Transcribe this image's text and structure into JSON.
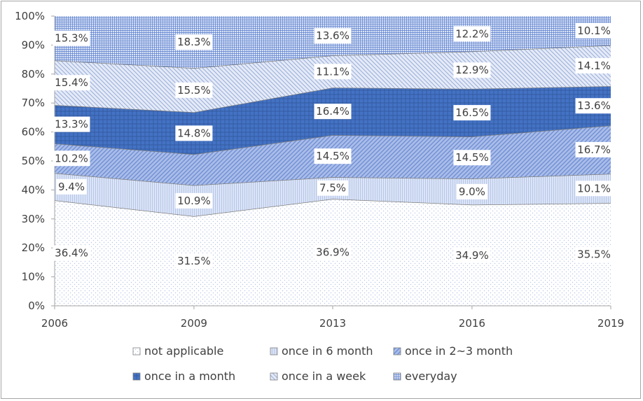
{
  "chart_data": {
    "type": "area",
    "stacked": "percent",
    "x": [
      "2006",
      "2009",
      "2013",
      "2016",
      "2019"
    ],
    "y_ticks": [
      "0%",
      "10%",
      "20%",
      "30%",
      "40%",
      "50%",
      "60%",
      "70%",
      "80%",
      "90%",
      "100%"
    ],
    "ylim": [
      0,
      100
    ],
    "grid": false,
    "legend_position": "bottom",
    "series": [
      {
        "name": "not applicable",
        "values": [
          36.4,
          31.5,
          36.9,
          34.9,
          35.5
        ],
        "labels": [
          "36.4%",
          "31.5%",
          "36.9%",
          "34.9%",
          "35.5%"
        ],
        "fill": "#ffffff",
        "pattern_color": "#b9c7e6",
        "pattern": "dots"
      },
      {
        "name": "once in 6 month",
        "values": [
          9.4,
          10.9,
          7.5,
          9.0,
          10.1
        ],
        "labels": [
          "9.4%",
          "10.9%",
          "7.5%",
          "9.0%",
          "10.1%"
        ],
        "fill": "#dce5f6",
        "pattern_color": "#aebfe6",
        "pattern": "vlines"
      },
      {
        "name": "once in 2~3 month",
        "values": [
          10.2,
          10.9,
          14.5,
          14.5,
          16.7
        ],
        "labels": [
          "10.2%",
          "",
          "14.5%",
          "14.5%",
          "16.7%"
        ],
        "fill": "#aabde8",
        "pattern_color": "#6f8fd6",
        "pattern": "diag"
      },
      {
        "name": "once in a month",
        "values": [
          13.3,
          14.8,
          16.4,
          16.5,
          13.6
        ],
        "labels": [
          "13.3%",
          "14.8%",
          "16.4%",
          "16.5%",
          "13.6%"
        ],
        "fill": "#4472c4",
        "pattern_color": "#2f5597",
        "pattern": "grid"
      },
      {
        "name": "once in a week",
        "values": [
          15.4,
          15.5,
          11.1,
          12.9,
          14.1
        ],
        "labels": [
          "15.4%",
          "15.5%",
          "11.1%",
          "12.9%",
          "14.1%"
        ],
        "fill": "#e4eaf6",
        "pattern_color": "#8ea6d8",
        "pattern": "diag2"
      },
      {
        "name": "everyday",
        "values": [
          15.3,
          18.3,
          13.6,
          12.2,
          10.1
        ],
        "labels": [
          "15.3%",
          "18.3%",
          "13.6%",
          "12.2%",
          "10.1%"
        ],
        "fill": "#dbe4f5",
        "pattern_color": "#5b7fcf",
        "pattern": "cross"
      }
    ]
  }
}
